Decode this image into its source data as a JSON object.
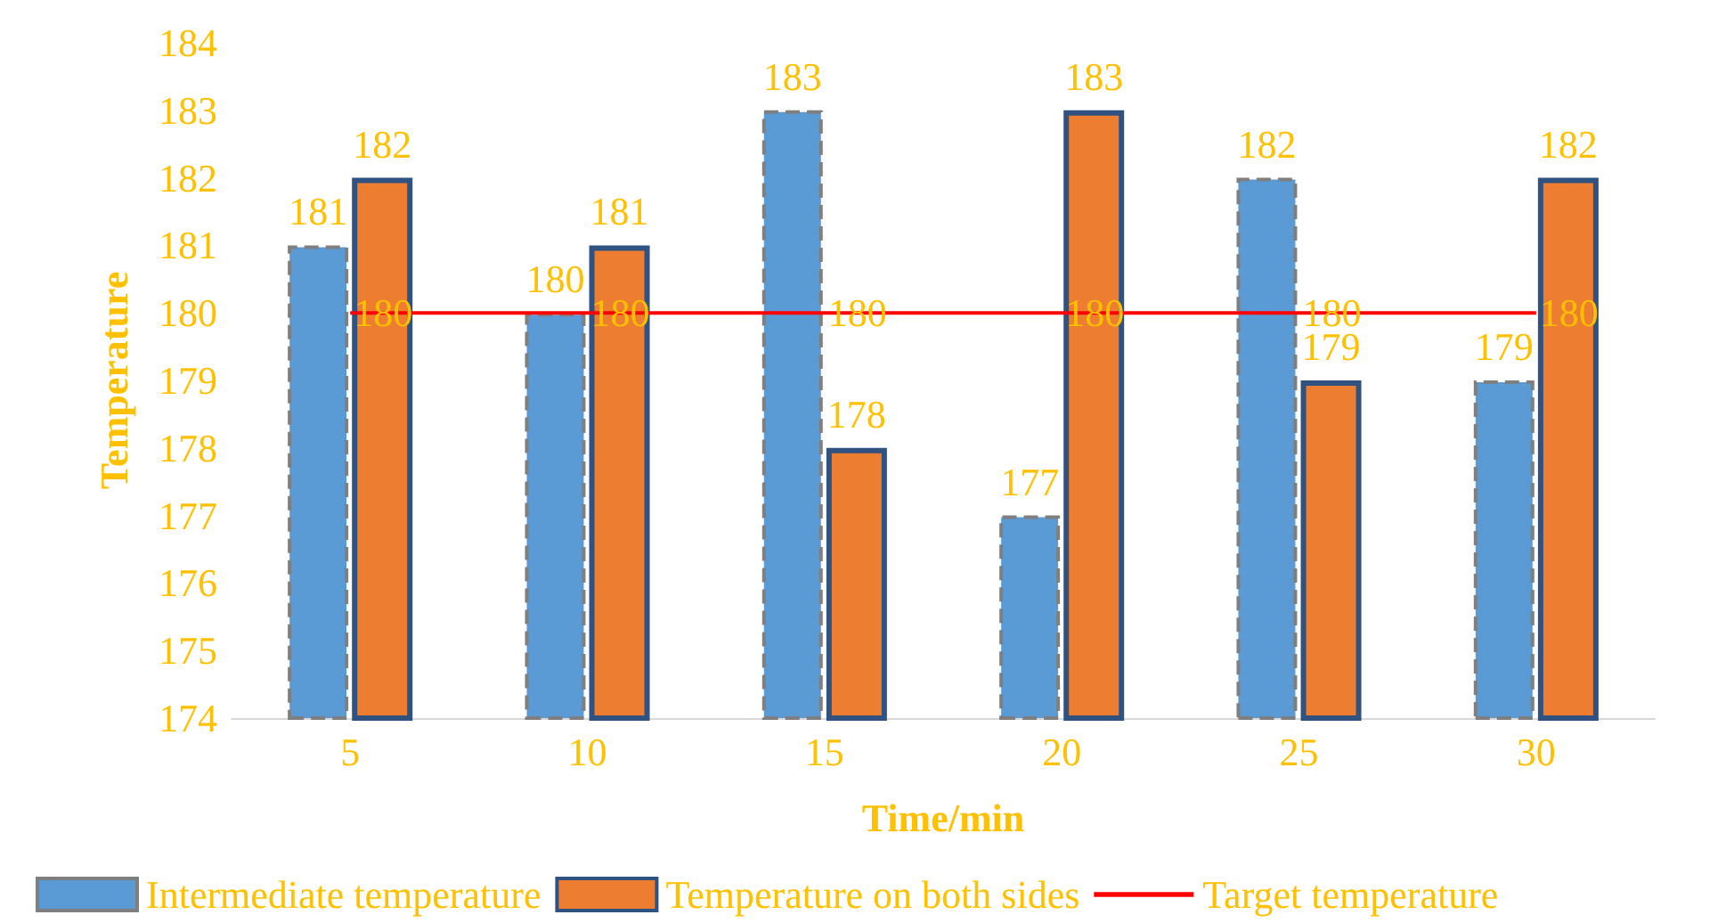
{
  "chart_data": {
    "type": "bar",
    "xlabel": "Time/min",
    "ylabel": "Temperature",
    "categories": [
      "5",
      "10",
      "15",
      "20",
      "25",
      "30"
    ],
    "series": [
      {
        "name": "Intermediate temperature",
        "color": "#5b9bd5",
        "values": [
          181,
          180,
          183,
          177,
          182,
          179
        ]
      },
      {
        "name": "Temperature on both sides",
        "color": "#ed7d31",
        "values": [
          182,
          181,
          178,
          183,
          179,
          182
        ]
      },
      {
        "name": "Target temperature",
        "type": "line",
        "color": "#ff0000",
        "values": [
          180,
          180,
          180,
          180,
          180,
          180
        ]
      }
    ],
    "ylim": [
      174,
      184
    ],
    "yticks": [
      174,
      175,
      176,
      177,
      178,
      179,
      180,
      181,
      182,
      183,
      184
    ],
    "data_labels": true,
    "grid": false,
    "legend": "bottom"
  }
}
